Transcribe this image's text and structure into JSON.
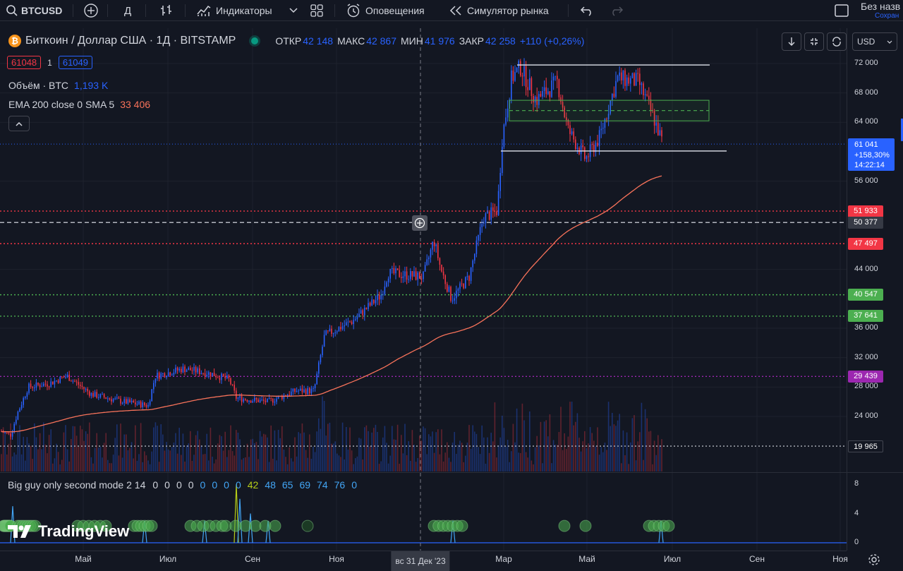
{
  "toolbar": {
    "symbol": "BTCUSD",
    "interval": "Д",
    "indicators": "Индикаторы",
    "alerts": "Оповещения",
    "replay": "Симулятор рынка",
    "layout_name": "Без назв",
    "layout_status": "Сохран"
  },
  "legend": {
    "title": "Биткоин / Доллар США · 1Д · BITSTAMP",
    "open_label": "ОТКР",
    "open": "42 148",
    "high_label": "МАКС",
    "high": "42 867",
    "low_label": "МИН",
    "low": "41 976",
    "close_label": "ЗАКР",
    "close": "42 258",
    "change": "+110 (+0,26%)",
    "bid": "61048",
    "spread": "1",
    "ask": "61049",
    "volume_label": "Объём · BTC",
    "volume": "1,193 K",
    "ema_label": "EMA 200 close 0 SMA 5",
    "ema": "33 406"
  },
  "indicator": {
    "label": "Big guy only second mode 2 14",
    "values": [
      "0",
      "0",
      "0",
      "0",
      "0",
      "0",
      "0",
      "0",
      "42",
      "48",
      "65",
      "69",
      "74",
      "76",
      "0"
    ]
  },
  "price_scale": {
    "currency": "USD",
    "ticks": [
      "72 000",
      "68 000",
      "64 000",
      "56 000",
      "44 000",
      "36 000",
      "32 000",
      "28 000",
      "24 000"
    ],
    "indicator_ticks": [
      "8",
      "4",
      "0"
    ],
    "last_price": "61 041",
    "last_change": "+158,30%",
    "countdown": "14:22:14",
    "levels": [
      {
        "label": "51 933",
        "color": "#f23645"
      },
      {
        "label": "50 377",
        "color": "#363a45"
      },
      {
        "label": "47 497",
        "color": "#f23645"
      },
      {
        "label": "40 547",
        "color": "#4caf50"
      },
      {
        "label": "37 641",
        "color": "#4caf50"
      },
      {
        "label": "29 439",
        "color": "#9c27b0"
      },
      {
        "label": "19 965",
        "color": "#131722"
      }
    ]
  },
  "time_scale": {
    "ticks": [
      "Май",
      "Июл",
      "Сен",
      "Ноя",
      "Мар",
      "Май",
      "Июл",
      "Сен",
      "Ноя"
    ],
    "cursor": "вс 31 Дек '23"
  },
  "brand": "TradingView",
  "colors": {
    "background": "#131722",
    "up": "#2962ff",
    "down": "#f23645",
    "ema": "#f7725a",
    "accent": "#2962ff"
  }
}
